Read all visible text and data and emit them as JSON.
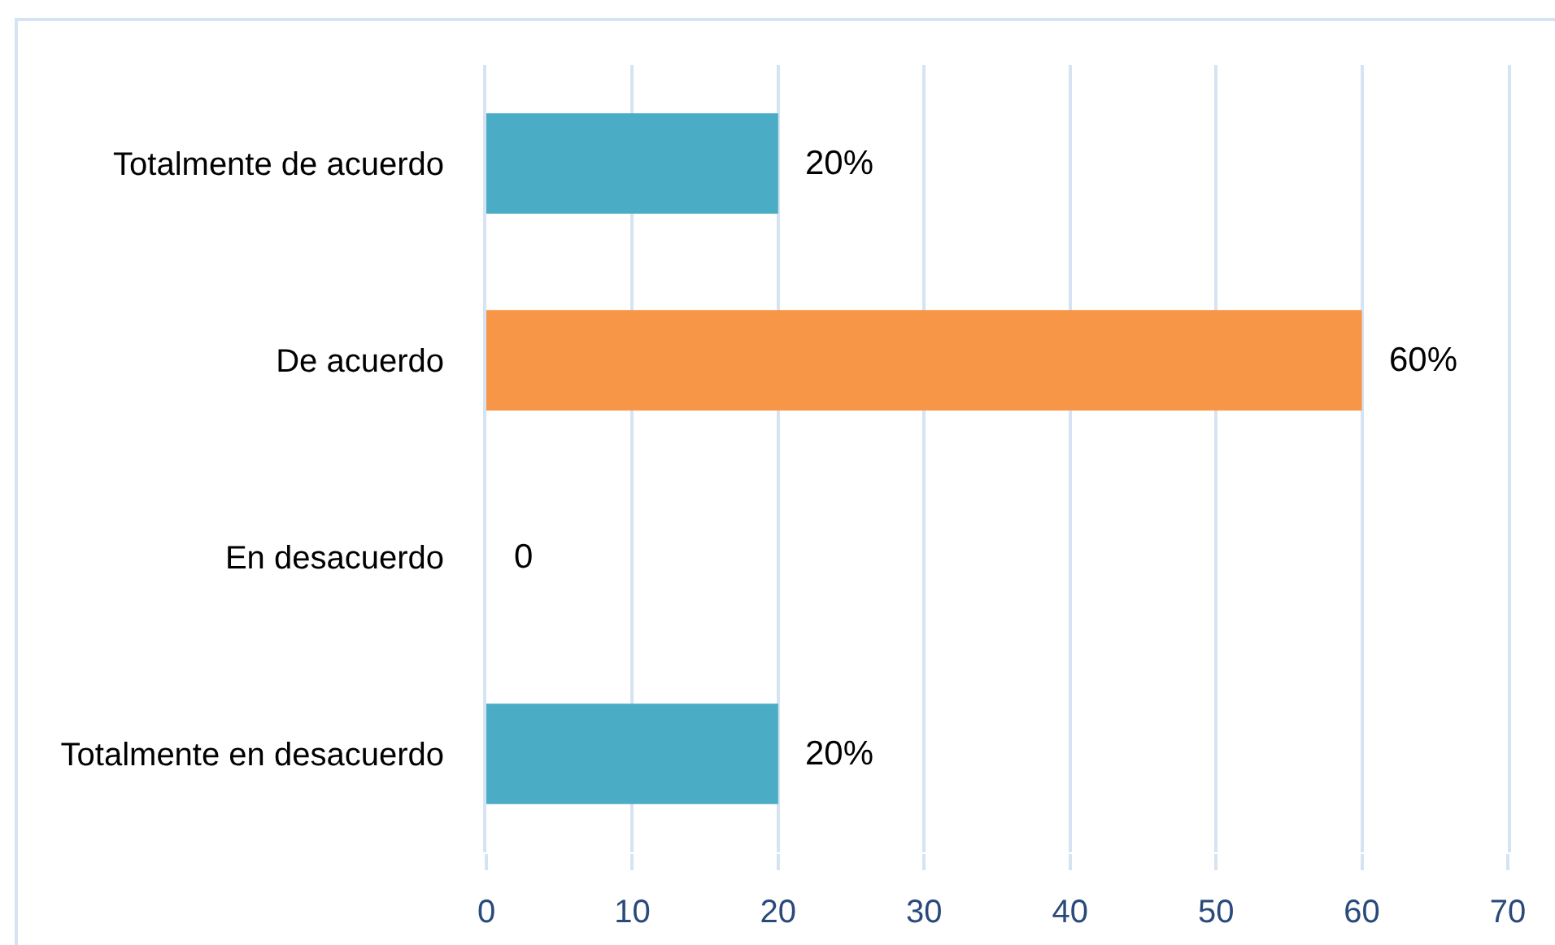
{
  "chart_data": {
    "type": "bar",
    "orientation": "horizontal",
    "categories": [
      "Totalmente de acuerdo",
      "De acuerdo",
      "En desacuerdo",
      "Totalmente en desacuerdo"
    ],
    "values": [
      20,
      60,
      0,
      20
    ],
    "colors": [
      "#4bacc6",
      "#f79646",
      "#4bacc6",
      "#4bacc6"
    ],
    "value_labels": [
      "20%",
      "60%",
      "0",
      "20%"
    ],
    "xlim": [
      0,
      70
    ],
    "xticks": [
      0,
      10,
      20,
      30,
      40,
      50,
      60,
      70
    ],
    "grid": "x"
  }
}
